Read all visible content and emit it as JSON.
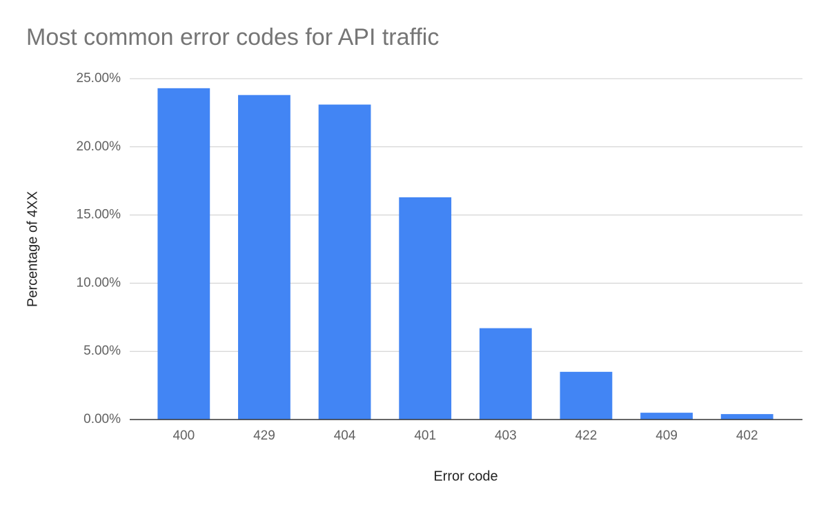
{
  "chart_data": {
    "type": "bar",
    "title": "Most common error codes for API traffic",
    "x_label": "Error code",
    "y_label": "Percentage of 4XX",
    "categories": [
      "400",
      "429",
      "404",
      "401",
      "403",
      "422",
      "409",
      "402"
    ],
    "values": [
      24.3,
      23.8,
      23.1,
      16.3,
      6.7,
      3.5,
      0.5,
      0.4
    ],
    "color": "#4285f4",
    "ylim": [
      0,
      25
    ],
    "yticks": [
      {
        "value": 0,
        "label": "0.00%"
      },
      {
        "value": 5,
        "label": "5.00%"
      },
      {
        "value": 10,
        "label": "10.00%"
      },
      {
        "value": 15,
        "label": "15.00%"
      },
      {
        "value": 20,
        "label": "20.00%"
      },
      {
        "value": 25,
        "label": "25.00%"
      }
    ],
    "grid": true
  }
}
